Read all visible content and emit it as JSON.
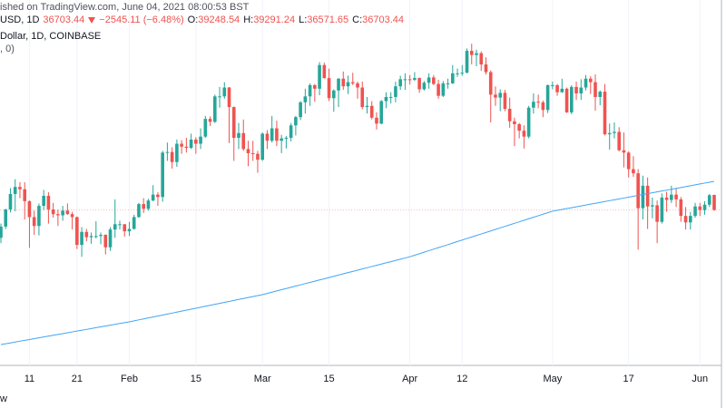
{
  "header": {
    "line1": "ished on TradingView.com, June 04, 2021 08:00:53 BST",
    "symbol": "USD, 1D",
    "change": "−2545.11 (−6.48%)",
    "labels": [
      "O:",
      "H:",
      "L:",
      "C:"
    ],
    "line3": "Dollar, 1D, COINBASE",
    "line4": ", 0)",
    "footer": "w"
  },
  "chart_data": {
    "type": "candlestick",
    "up_color": "#26a69a",
    "down_color": "#ef5350",
    "categories": [
      null,
      null,
      null,
      null,
      null,
      null,
      "11",
      null,
      null,
      null,
      null,
      null,
      null,
      null,
      null,
      null,
      "21",
      null,
      null,
      null,
      null,
      null,
      null,
      null,
      null,
      null,
      null,
      "Feb",
      null,
      null,
      null,
      null,
      null,
      null,
      null,
      null,
      null,
      null,
      null,
      null,
      null,
      "15",
      null,
      null,
      null,
      null,
      null,
      null,
      null,
      null,
      null,
      null,
      null,
      null,
      null,
      "Mar",
      null,
      null,
      null,
      null,
      null,
      null,
      null,
      null,
      null,
      null,
      null,
      null,
      null,
      "15",
      null,
      null,
      null,
      null,
      null,
      null,
      null,
      null,
      null,
      null,
      null,
      null,
      null,
      null,
      null,
      null,
      "Apr",
      null,
      null,
      null,
      null,
      null,
      null,
      null,
      null,
      null,
      null,
      "12",
      null,
      null,
      null,
      null,
      null,
      null,
      null,
      null,
      null,
      null,
      null,
      null,
      null,
      null,
      null,
      null,
      null,
      null,
      "May",
      null,
      null,
      null,
      null,
      null,
      null,
      null,
      null,
      null,
      null,
      null,
      null,
      null,
      null,
      null,
      "17",
      null,
      null,
      null,
      null,
      null,
      null,
      null,
      null,
      null,
      null,
      null,
      null,
      null,
      null,
      "Jun",
      null,
      null,
      null
    ],
    "open": [
      32000,
      33900,
      36800,
      39400,
      40600,
      40200,
      38200,
      35500,
      34000,
      37400,
      39100,
      36800,
      36000,
      35800,
      36600,
      36000,
      35500,
      30800,
      33000,
      32100,
      32300,
      32300,
      32500,
      30400,
      33400,
      34300,
      34300,
      33100,
      33500,
      35500,
      37700,
      36900,
      38300,
      39300,
      38900,
      46400,
      46500,
      44800,
      47900,
      47400,
      47200,
      48600,
      47900,
      49100,
      52100,
      51600,
      55900,
      55900,
      57400,
      54100,
      48900,
      49700,
      47000,
      46300,
      46200,
      45200,
      49600,
      48400,
      50500,
      48400,
      48800,
      48900,
      51000,
      52400,
      54900,
      55900,
      57800,
      57200,
      61200,
      59000,
      55600,
      56900,
      58900,
      57600,
      58300,
      58100,
      57400,
      54100,
      54300,
      52300,
      51300,
      55100,
      55800,
      55800,
      57600,
      58800,
      58800,
      58700,
      59000,
      57100,
      58200,
      59100,
      58000,
      56000,
      58100,
      58100,
      59800,
      59800,
      59900,
      63600,
      62900,
      63200,
      61300,
      60000,
      56200,
      55700,
      56500,
      53800,
      51700,
      51200,
      50100,
      49100,
      54000,
      55000,
      54900,
      53600,
      57800,
      57800,
      56600,
      57200,
      53200,
      57500,
      56400,
      57400,
      58900,
      58300,
      55800,
      56700,
      49500,
      49700,
      49900,
      46800,
      46400,
      43600,
      42900,
      37000,
      40800,
      37300,
      37500,
      34700,
      38800,
      38400,
      39300,
      38500,
      35700,
      34600,
      35700,
      37300,
      36700,
      37600,
      39248.54
    ],
    "high": [
      34400,
      36900,
      40400,
      41900,
      41400,
      41400,
      38300,
      36600,
      37800,
      40100,
      39700,
      37900,
      36800,
      37400,
      37800,
      36400,
      35600,
      33800,
      33500,
      32900,
      34800,
      32900,
      32600,
      33800,
      38500,
      34900,
      34300,
      34700,
      35900,
      37900,
      38700,
      38600,
      40900,
      39700,
      46700,
      48100,
      47300,
      48600,
      48500,
      48900,
      49600,
      49000,
      50500,
      52600,
      52500,
      56200,
      57500,
      58300,
      57500,
      54200,
      51400,
      52000,
      48400,
      48400,
      46700,
      49800,
      50200,
      52600,
      51800,
      49400,
      49200,
      51400,
      52600,
      55100,
      57200,
      58100,
      58000,
      61700,
      61600,
      60600,
      57100,
      59000,
      60100,
      59400,
      59900,
      58400,
      58400,
      55800,
      55100,
      53200,
      55300,
      56600,
      56600,
      58400,
      59400,
      59800,
      59500,
      60000,
      59100,
      58500,
      59800,
      59500,
      58700,
      58500,
      58900,
      61200,
      60600,
      61200,
      64000,
      64800,
      63800,
      63500,
      62500,
      60300,
      57600,
      57100,
      57000,
      55700,
      52300,
      51400,
      51000,
      54300,
      56400,
      56200,
      55200,
      57900,
      58400,
      58000,
      58900,
      57400,
      57800,
      58400,
      58800,
      59500,
      59300,
      59600,
      56900,
      58000,
      51300,
      51500,
      50700,
      49800,
      46600,
      45800,
      43600,
      42500,
      42200,
      38800,
      38300,
      39500,
      39800,
      40800,
      40400,
      38900,
      37200,
      36400,
      37900,
      37900,
      38200,
      39400,
      39291.24
    ],
    "low": [
      31100,
      33500,
      36300,
      36500,
      38700,
      35100,
      30300,
      32500,
      32400,
      36700,
      34400,
      35400,
      34000,
      34900,
      35900,
      33400,
      30100,
      28800,
      31400,
      31000,
      31900,
      30900,
      29200,
      29800,
      32000,
      33400,
      32200,
      32300,
      33400,
      35400,
      36200,
      36600,
      38200,
      37400,
      38100,
      45000,
      43700,
      44000,
      46200,
      46400,
      47000,
      46200,
      47000,
      48900,
      50900,
      51400,
      54000,
      55500,
      48000,
      45000,
      47000,
      46700,
      44100,
      45000,
      43000,
      45000,
      47000,
      48100,
      47500,
      46300,
      47100,
      48300,
      49300,
      51900,
      53000,
      54300,
      55000,
      56100,
      58900,
      55100,
      53300,
      54100,
      57000,
      56300,
      57800,
      55500,
      53700,
      53000,
      52000,
      50300,
      51200,
      53900,
      54700,
      54900,
      57000,
      57000,
      57900,
      58500,
      56500,
      56900,
      57200,
      57800,
      55500,
      55800,
      57200,
      58000,
      59200,
      59400,
      59800,
      61300,
      61000,
      60200,
      59600,
      51500,
      54300,
      53400,
      53400,
      50600,
      47500,
      48800,
      47100,
      48800,
      53000,
      53900,
      52400,
      53100,
      57100,
      56000,
      56500,
      53100,
      52900,
      55300,
      55300,
      56900,
      56300,
      53500,
      54400,
      49300,
      46900,
      48800,
      46600,
      43900,
      42200,
      42300,
      30000,
      35100,
      33500,
      35300,
      31100,
      34400,
      36400,
      37900,
      37200,
      34700,
      33400,
      33400,
      35400,
      35700,
      35900,
      37200,
      36571.65
    ],
    "close": [
      33900,
      36800,
      39400,
      40600,
      40200,
      38200,
      35500,
      34000,
      37400,
      39100,
      36800,
      36000,
      35800,
      36600,
      36000,
      35500,
      30800,
      33000,
      32100,
      32300,
      32300,
      32500,
      30400,
      33400,
      34300,
      34300,
      33100,
      33500,
      35500,
      37700,
      36900,
      38300,
      39300,
      38900,
      46400,
      46500,
      44800,
      47900,
      47400,
      47200,
      48600,
      47900,
      49100,
      52100,
      51600,
      55900,
      55900,
      57400,
      54100,
      48900,
      49700,
      47000,
      46300,
      46200,
      45200,
      49600,
      48400,
      50500,
      48400,
      48800,
      48900,
      51000,
      52400,
      54900,
      55900,
      57800,
      57200,
      61200,
      59000,
      55600,
      56900,
      58900,
      57600,
      58300,
      58100,
      57400,
      54100,
      54300,
      52300,
      51300,
      55100,
      55800,
      55800,
      57600,
      58800,
      58800,
      58700,
      59000,
      57100,
      58200,
      59100,
      58000,
      56000,
      58100,
      58100,
      59800,
      59800,
      59900,
      63600,
      62900,
      63200,
      61300,
      60000,
      56200,
      55700,
      56500,
      53800,
      51700,
      51200,
      50100,
      49100,
      54000,
      55000,
      54900,
      53600,
      57800,
      57800,
      56600,
      57200,
      53200,
      57500,
      56400,
      57400,
      58900,
      58300,
      55800,
      56700,
      49500,
      49700,
      49900,
      46800,
      46400,
      43600,
      42900,
      37000,
      40800,
      37300,
      37500,
      34700,
      38800,
      38400,
      39300,
      38500,
      35700,
      34600,
      35700,
      37300,
      36700,
      37600,
      39200,
      36703.44
    ],
    "ma": {
      "color": "#42a5f5",
      "values": [
        13960,
        14100,
        14240,
        14390,
        14530,
        14670,
        14810,
        14960,
        15100,
        15240,
        15380,
        15530,
        15670,
        15810,
        15950,
        16100,
        16240,
        16380,
        16520,
        16670,
        16810,
        16950,
        17090,
        17240,
        17380,
        17520,
        17660,
        17800,
        17960,
        18130,
        18290,
        18460,
        18620,
        18790,
        18950,
        19110,
        19280,
        19440,
        19610,
        19770,
        19940,
        20100,
        20260,
        20430,
        20590,
        20760,
        20920,
        21090,
        21250,
        21410,
        21580,
        21740,
        21910,
        22070,
        22240,
        22400,
        22610,
        22810,
        23020,
        23230,
        23430,
        23640,
        23850,
        24050,
        24260,
        24460,
        24670,
        24880,
        25080,
        25290,
        25500,
        25700,
        25910,
        26120,
        26320,
        26530,
        26740,
        26940,
        27150,
        27350,
        27560,
        27770,
        27970,
        28180,
        28390,
        28590,
        28800,
        29060,
        29310,
        29570,
        29830,
        30080,
        30340,
        30600,
        30850,
        31110,
        31370,
        31620,
        31880,
        32140,
        32390,
        32650,
        32910,
        33160,
        33420,
        33680,
        33930,
        34190,
        34450,
        34700,
        34960,
        35220,
        35470,
        35730,
        35990,
        36240,
        36500,
        36650,
        36800,
        36940,
        37090,
        37240,
        37390,
        37540,
        37690,
        37830,
        37980,
        38130,
        38280,
        38430,
        38580,
        38720,
        38870,
        39020,
        39170,
        39320,
        39470,
        39610,
        39760,
        39910,
        40060,
        40210,
        40360,
        40500,
        40650,
        40800,
        40950,
        41100,
        41250,
        41390,
        41540
      ]
    },
    "ylim": [
      10900,
      67900
    ],
    "grid": true
  }
}
